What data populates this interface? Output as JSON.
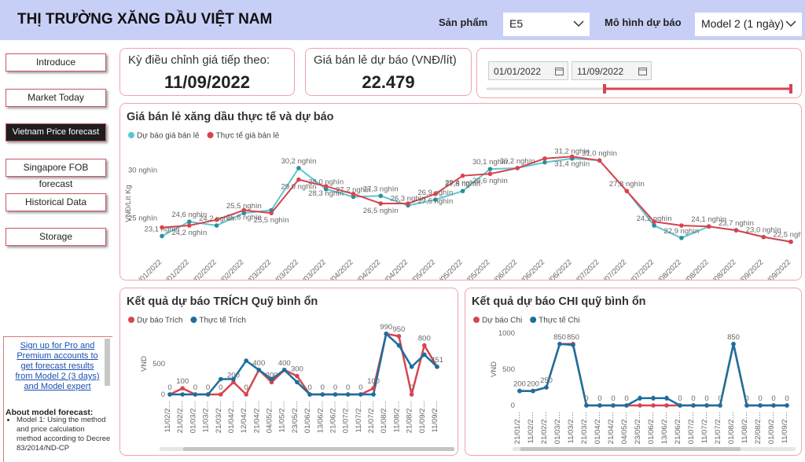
{
  "header": {
    "title": "THỊ TRƯỜNG XĂNG DẦU VIỆT NAM",
    "product_label": "Sản phẩm",
    "product_value": "E5",
    "model_label": "Mô hình dự báo",
    "model_value": "Model 2 (1 ngày)"
  },
  "nav": [
    "Introduce",
    "Market Today",
    "Vietnam Price forecast",
    "Singapore FOB forecast",
    "Historical Data",
    "Storage"
  ],
  "cards": [
    {
      "label": "Kỳ điều chỉnh giá tiếp theo:",
      "value": "11/09/2022"
    },
    {
      "label": "Giá bán lẻ dự báo (VNĐ/lít)",
      "value": "22.479"
    }
  ],
  "date_range": {
    "start": "01/01/2022",
    "end": "11/09/2022"
  },
  "sidebar": {
    "link": "Sign up for Pro and Premium accounts to get forecast results from Model 2 (3 days) and Model expert",
    "about_title": "About model forecast:",
    "about_items": [
      "Model 1: Using the method and price calculation method according to Decree 83/2014/ND-CP"
    ]
  },
  "chart_data": [
    {
      "type": "line",
      "title": "Giá bán lẻ xăng dầu thực tế và dự báo",
      "y_label": "VNĐ/Lít Kg",
      "categories": [
        "11/01/2022",
        "21/01/2022",
        "11/02/2022",
        "21/02/2022",
        "01/03/2022",
        "11/03/2022",
        "21/03/2022",
        "01/04/2022",
        "12/04/2022",
        "21/04/2022",
        "04/05/2022",
        "11/05/2022",
        "23/05/2022",
        "01/06/2022",
        "13/06/2022",
        "21/06/2022",
        "01/07/2022",
        "11/07/2022",
        "21/07/2022",
        "01/08/2022",
        "11/08/2022",
        "22/08/2022",
        "01/09/2022",
        "11/09/2022"
      ],
      "series": [
        {
          "name": "Dự báo giá bán lẻ",
          "color": "#5cc6d0",
          "values": [
            23.1,
            24.6,
            24.2,
            25.5,
            25.8,
            30.2,
            28.0,
            27.2,
            27.3,
            26.3,
            26.9,
            27.8,
            30.1,
            30.2,
            30.8,
            31.2,
            31.0,
            27.8,
            24.2,
            22.9,
            24.1,
            23.7,
            23.0,
            22.5
          ],
          "value_labels": [
            "23,1 nghìn",
            "24,6 nghìn",
            "24,2 nghìn",
            "25,5 nghìn",
            null,
            "30,2 nghìn",
            "28,0 nghìn",
            "27,2 nghìn",
            "27,3 nghìn",
            "26,3 nghìn",
            "26,9 nghìn",
            "27,8 nghìn",
            "30,1 nghìn",
            "30,2 nghìn",
            null,
            "31,2 nghìn",
            "31,0 nghìn",
            "27,8 nghìn",
            "24,2 nghìn",
            "22,9 nghìn",
            "24,1 nghìn",
            "23,7 nghìn",
            "23,0 nghìn",
            "22,5 nghìn"
          ]
        },
        {
          "name": "Thực tế giá bán lẻ",
          "color": "#d9434f",
          "values": [
            24.0,
            24.2,
            24.8,
            25.8,
            25.5,
            29.0,
            28.3,
            27.5,
            26.5,
            26.5,
            27.5,
            29.4,
            29.6,
            30.2,
            31.2,
            31.4,
            31.0,
            27.8,
            24.6,
            24.2,
            24.1,
            23.7,
            23.0,
            22.5
          ],
          "value_labels": [
            null,
            "24,2 nghìn",
            null,
            "25,8 nghìn",
            "25,5 nghìn",
            "29,0 nghìn",
            "28,3 nghìn",
            null,
            "26,5 nghìn",
            null,
            "27,5 nghìn",
            "29,4 nghìn",
            "29,6 nghìn",
            null,
            null,
            "31,4 nghìn",
            null,
            null,
            null,
            null,
            null,
            null,
            null,
            null
          ]
        }
      ],
      "ylim": [
        21,
        32
      ],
      "yticks": [
        {
          "value": 25,
          "label": "25 nghìn"
        },
        {
          "value": 30,
          "label": "30 nghìn"
        }
      ]
    },
    {
      "type": "line",
      "title": "Kết quả dự báo TRÍCH Quỹ bình ổn",
      "y_label": "VND",
      "categories": [
        "11/02/2…",
        "21/02/2…",
        "01/03/2…",
        "11/03/2…",
        "21/03/2…",
        "01/04/2…",
        "12/04/2…",
        "21/04/2…",
        "04/05/2…",
        "11/05/2…",
        "23/05/2…",
        "01/06/2…",
        "13/06/2…",
        "21/06/2…",
        "01/07/2…",
        "11/07/2…",
        "21/07/2…",
        "01/08/2…",
        "11/08/2…",
        "21/08/2…",
        "01/09/2…",
        "11/09/2…"
      ],
      "series": [
        {
          "name": "Dự báo Trích",
          "color": "#d64550",
          "values": [
            0,
            100,
            0,
            0,
            0,
            200,
            0,
            400,
            200,
            400,
            300,
            0,
            0,
            0,
            0,
            0,
            100,
            990,
            950,
            0,
            800,
            451
          ]
        },
        {
          "name": "Thực tế Trích",
          "color": "#1a6f9f",
          "values": [
            0,
            0,
            0,
            0,
            250,
            250,
            550,
            400,
            250,
            400,
            200,
            0,
            0,
            0,
            0,
            0,
            0,
            990,
            800,
            451,
            650,
            451
          ]
        }
      ],
      "ylim": [
        0,
        1000
      ],
      "yticks": [
        0,
        500
      ]
    },
    {
      "type": "line",
      "title": "Kết quả dự báo CHI quỹ bình ổn",
      "y_label": "VND",
      "categories": [
        "21/01/2…",
        "11/02/2…",
        "21/02/2…",
        "01/03/2…",
        "11/03/2…",
        "21/03/2…",
        "01/04/2…",
        "21/04/2…",
        "04/05/2…",
        "23/05/2…",
        "01/06/2…",
        "13/06/2…",
        "21/06/2…",
        "01/07/2…",
        "11/07/2…",
        "21/07/2…",
        "01/08/2…",
        "11/08/2…",
        "22/08/2…",
        "01/09/2…",
        "11/09/2…"
      ],
      "series": [
        {
          "name": "Dự báo Chi",
          "color": "#d64550",
          "values": [
            200,
            200,
            250,
            850,
            850,
            0,
            0,
            0,
            0,
            0,
            0,
            0,
            0,
            0,
            0,
            0,
            850,
            0,
            0,
            0,
            0
          ]
        },
        {
          "name": "Thực tế Chi",
          "color": "#1a6f9f",
          "values": [
            200,
            200,
            250,
            850,
            836,
            0,
            0,
            0,
            0,
            100,
            100,
            100,
            0,
            0,
            0,
            0,
            850,
            0,
            0,
            0,
            0
          ]
        }
      ],
      "ylim": [
        0,
        1000
      ],
      "yticks": [
        0,
        500,
        1000
      ]
    }
  ]
}
